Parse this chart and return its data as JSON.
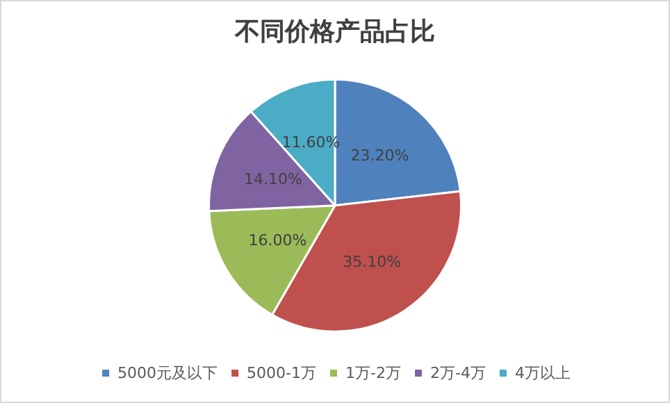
{
  "chart_data": {
    "type": "pie",
    "title": "不同价格产品占比",
    "categories": [
      "5000元及以下",
      "5000-1万",
      "1万-2万",
      "2万-4万",
      "4万以上"
    ],
    "values": [
      23.2,
      35.1,
      16.0,
      14.1,
      11.6
    ],
    "value_labels": [
      "23.20%",
      "35.10%",
      "16.00%",
      "14.10%",
      "11.60%"
    ],
    "colors": [
      "#4f81bd",
      "#c0504d",
      "#9bbb59",
      "#8064a2",
      "#4bacc6"
    ],
    "legend": "bottom"
  }
}
